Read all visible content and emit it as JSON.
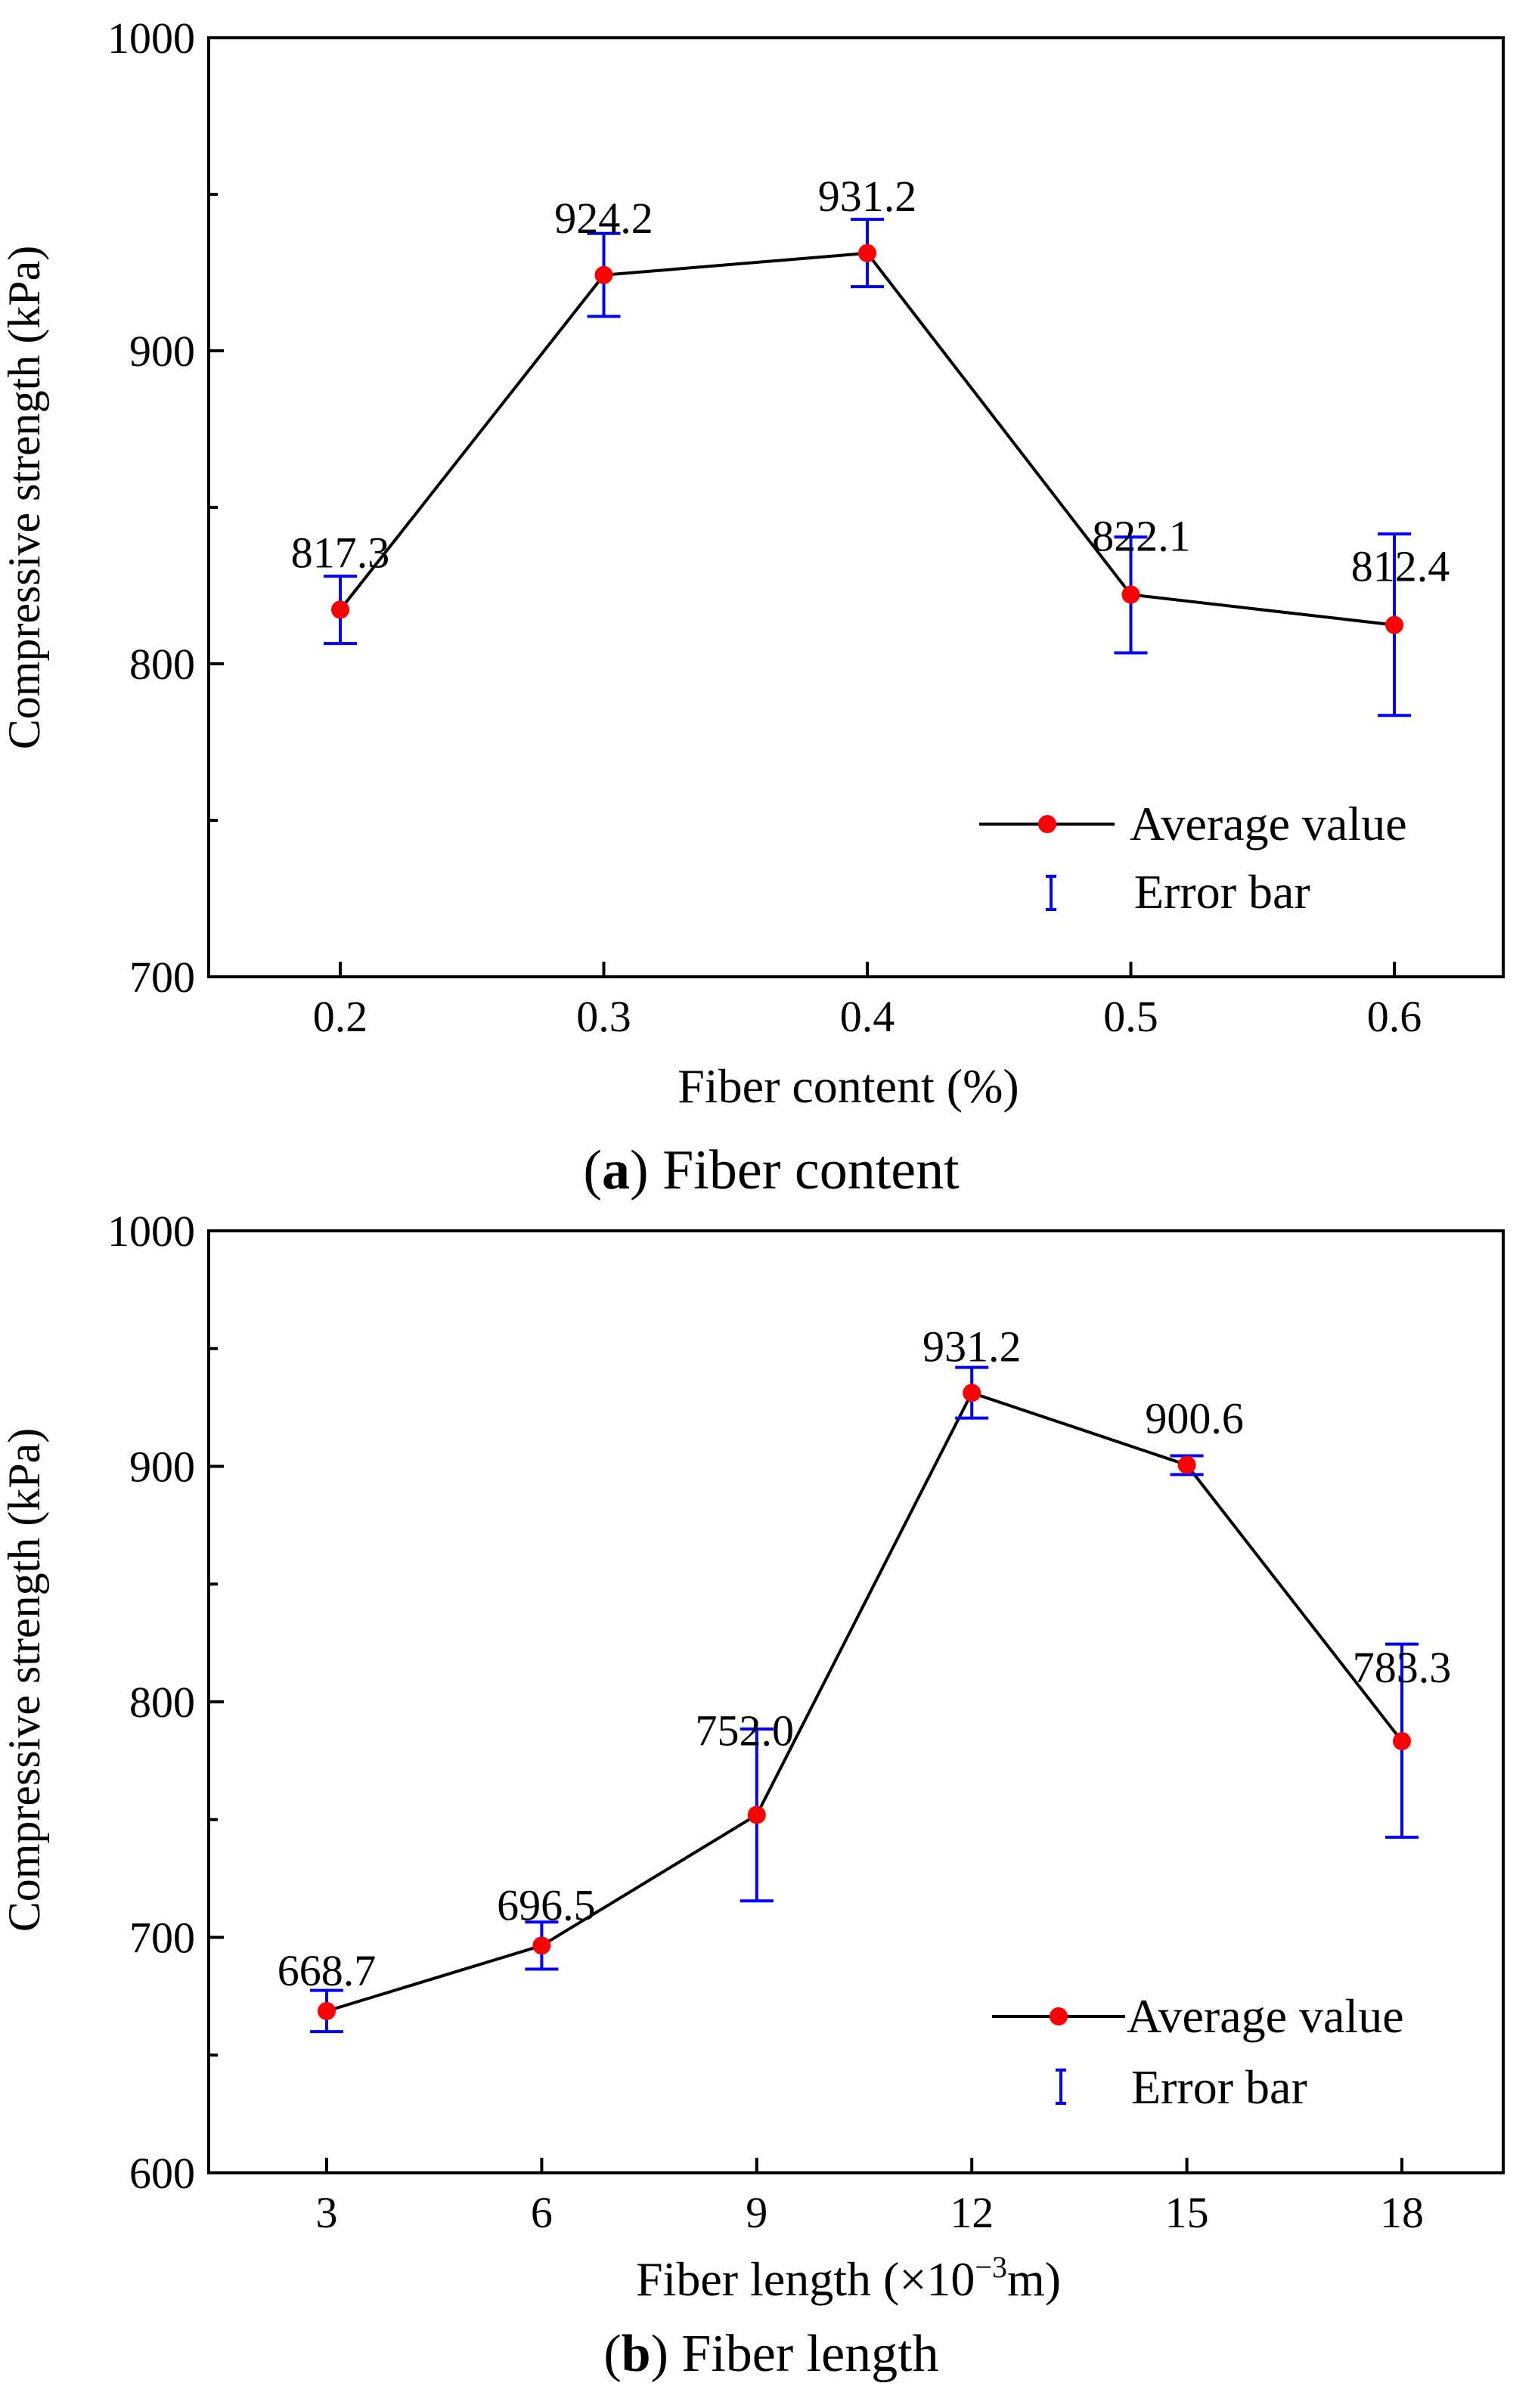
{
  "figure": {
    "colors": {
      "line": "#000000",
      "marker": "#ff0000",
      "error": "#0000ff",
      "axis": "#000000"
    }
  },
  "chart_data": [
    {
      "type": "line",
      "caption_letter": "a",
      "caption_text": " Fiber content",
      "xlabel": "Fiber content (%)",
      "ylabel": "Compressive strength (kPa)",
      "categories": [
        "0.2",
        "0.3",
        "0.4",
        "0.5",
        "0.6"
      ],
      "ylim": [
        700,
        1000
      ],
      "yticks": [
        700,
        800,
        900,
        1000
      ],
      "ytick_labels": [
        "700",
        "800",
        "900",
        "1000"
      ],
      "series": [
        {
          "name": "Average value",
          "values": [
            817.3,
            924.2,
            931.2,
            822.1,
            812.4
          ],
          "error_low": [
            806.5,
            911,
            920.5,
            803.5,
            783.5
          ],
          "error_high": [
            828,
            937.5,
            942,
            840.5,
            841.5
          ]
        }
      ],
      "data_labels": [
        "817.3",
        "924.2",
        "931.2",
        "822.1",
        "812.4"
      ],
      "legend": [
        "Average value",
        "Error bar"
      ],
      "legend_position": "bottom-right"
    },
    {
      "type": "line",
      "caption_letter": "b",
      "caption_text": " Fiber length",
      "xlabel_main": "Fiber length (×10",
      "xlabel_sup": "−3",
      "xlabel_end": "m)",
      "ylabel": "Compressive strength (kPa)",
      "categories": [
        "3",
        "6",
        "9",
        "12",
        "15",
        "18"
      ],
      "ylim": [
        600,
        1000
      ],
      "yticks": [
        600,
        700,
        800,
        900,
        1000
      ],
      "ytick_labels": [
        "600",
        "700",
        "800",
        "900",
        "1000"
      ],
      "series": [
        {
          "name": "Average value",
          "values": [
            668.7,
            696.5,
            752.0,
            931.2,
            900.6,
            783.3
          ],
          "error_low": [
            660,
            686.5,
            715.5,
            920.5,
            896.5,
            742.5
          ],
          "error_high": [
            677.5,
            706.5,
            788.5,
            942,
            904.5,
            824.5
          ]
        }
      ],
      "data_labels": [
        "668.7",
        "696.5",
        "752.0",
        "931.2",
        "900.6",
        "783.3"
      ],
      "legend": [
        "Average value",
        "Error bar"
      ],
      "legend_position": "bottom-right"
    }
  ]
}
